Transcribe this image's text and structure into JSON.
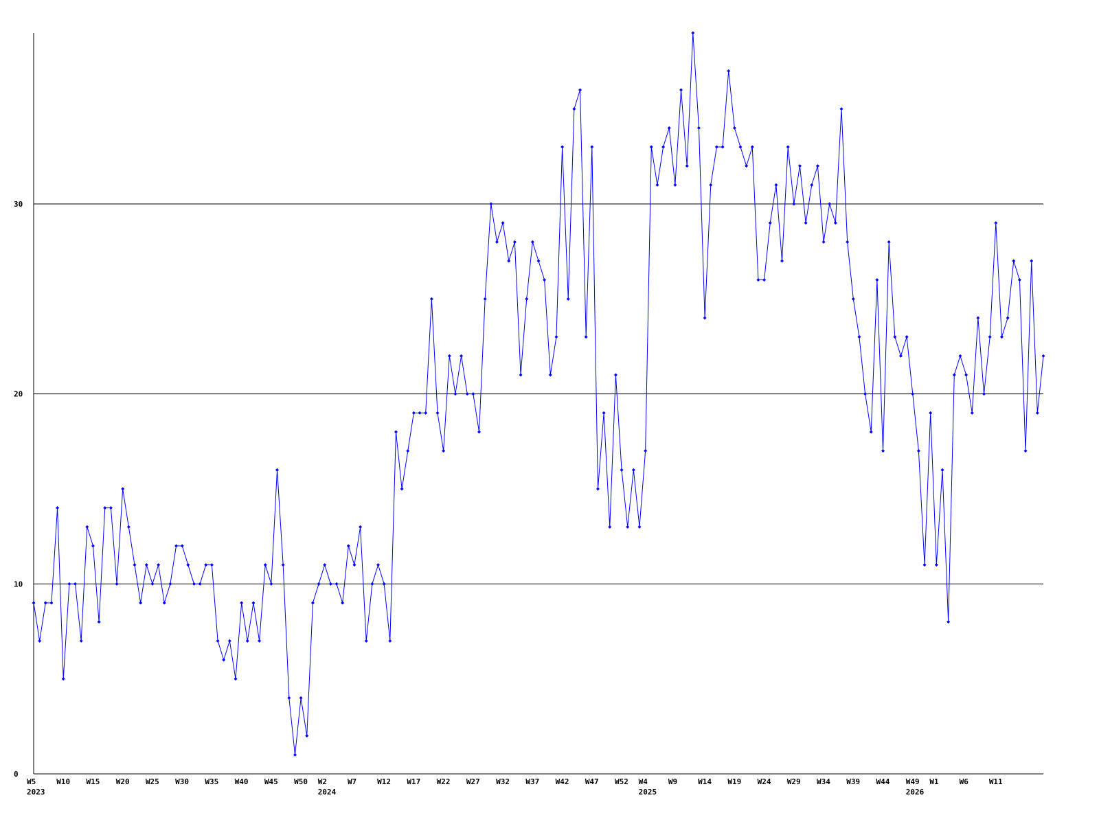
{
  "chart_data": {
    "type": "line",
    "categories": [
      "W5",
      null,
      null,
      null,
      null,
      "W10",
      null,
      null,
      null,
      null,
      "W15",
      null,
      null,
      null,
      null,
      "W20",
      null,
      null,
      null,
      null,
      "W25",
      null,
      null,
      null,
      null,
      "W30",
      null,
      null,
      null,
      null,
      "W35",
      null,
      null,
      null,
      null,
      "W40",
      null,
      null,
      null,
      null,
      "W45",
      null,
      null,
      null,
      null,
      "W50",
      null,
      null,
      null,
      "W2",
      null,
      null,
      null,
      null,
      "W7",
      null,
      null,
      null,
      null,
      "W12",
      null,
      null,
      null,
      null,
      "W17",
      null,
      null,
      null,
      null,
      "W22",
      null,
      null,
      null,
      null,
      "W27",
      null,
      null,
      null,
      null,
      "W32",
      null,
      null,
      null,
      null,
      "W37",
      null,
      null,
      null,
      null,
      "W42",
      null,
      null,
      null,
      null,
      "W47",
      null,
      null,
      null,
      null,
      "W52",
      null,
      null,
      null,
      "W4",
      null,
      null,
      null,
      null,
      "W9",
      null,
      null,
      null,
      null,
      "W14",
      null,
      null,
      null,
      null,
      "W19",
      null,
      null,
      null,
      null,
      "W24",
      null,
      null,
      null,
      null,
      "W29",
      null,
      null,
      null,
      null,
      "W34",
      null,
      null,
      null,
      null,
      "W39",
      null,
      null,
      null,
      null,
      "W44",
      null,
      null,
      null,
      null,
      "W49",
      null,
      null,
      null,
      "W1",
      null,
      null,
      null,
      null,
      "W6",
      null,
      null,
      null,
      null,
      "W11",
      null,
      null,
      null,
      null,
      null,
      null,
      null,
      null
    ],
    "x_group_labels": [
      "2023",
      null,
      null,
      null,
      null,
      null,
      null,
      null,
      null,
      null,
      null,
      null,
      null,
      null,
      null,
      null,
      null,
      null,
      null,
      null,
      null,
      null,
      null,
      null,
      null,
      null,
      null,
      null,
      null,
      null,
      null,
      null,
      null,
      null,
      null,
      null,
      null,
      null,
      null,
      null,
      null,
      null,
      null,
      null,
      null,
      null,
      null,
      null,
      null,
      "2024",
      null,
      null,
      null,
      null,
      null,
      null,
      null,
      null,
      null,
      null,
      null,
      null,
      null,
      null,
      null,
      null,
      null,
      null,
      null,
      null,
      null,
      null,
      null,
      null,
      null,
      null,
      null,
      null,
      null,
      null,
      null,
      null,
      null,
      null,
      null,
      null,
      null,
      null,
      null,
      null,
      null,
      null,
      null,
      null,
      null,
      null,
      null,
      null,
      null,
      null,
      null,
      null,
      null,
      "2025",
      null,
      null,
      null,
      null,
      null,
      null,
      null,
      null,
      null,
      null,
      null,
      null,
      null,
      null,
      null,
      null,
      null,
      null,
      null,
      null,
      null,
      null,
      null,
      null,
      null,
      null,
      null,
      null,
      null,
      null,
      null,
      null,
      null,
      null,
      null,
      null,
      null,
      null,
      null,
      null,
      null,
      null,
      null,
      null,
      "2026",
      null,
      null,
      null,
      null,
      null,
      null,
      null,
      null,
      null,
      null,
      null,
      null,
      null,
      null,
      null,
      null,
      null,
      null
    ],
    "series": [
      {
        "color": "#0000ff",
        "values": [
          9,
          7,
          9,
          9,
          14,
          5,
          10,
          10,
          7,
          13,
          12,
          8,
          14,
          14,
          10,
          15,
          13,
          11,
          9,
          11,
          10,
          11,
          9,
          10,
          12,
          12,
          11,
          10,
          10,
          11,
          11,
          7,
          6,
          7,
          5,
          9,
          7,
          9,
          7,
          11,
          10,
          16,
          11,
          4,
          1,
          4,
          2,
          9,
          10,
          11,
          10,
          10,
          9,
          12,
          11,
          13,
          7,
          10,
          11,
          10,
          7,
          18,
          15,
          17,
          19,
          19,
          19,
          25,
          19,
          17,
          22,
          20,
          22,
          20,
          20,
          18,
          25,
          30,
          28,
          29,
          27,
          28,
          21,
          25,
          28,
          27,
          26,
          21,
          23,
          33,
          25,
          35,
          36,
          23,
          33,
          15,
          19,
          13,
          21,
          16,
          13,
          16,
          13,
          17,
          33,
          31,
          33,
          34,
          31,
          36,
          32,
          39,
          34,
          24,
          31,
          33,
          33,
          37,
          34,
          33,
          32,
          33,
          26,
          26,
          29,
          31,
          27,
          33,
          30,
          32,
          29,
          31,
          32,
          28,
          30,
          29,
          35,
          28,
          25,
          23,
          20,
          18,
          26,
          17,
          28,
          23,
          22,
          23,
          20,
          17,
          11,
          19,
          11,
          16,
          8,
          21,
          22,
          21,
          19,
          24,
          20,
          23,
          29,
          23,
          24,
          27,
          26,
          17,
          27,
          19,
          22
        ]
      }
    ],
    "ylim": [
      0,
      39
    ],
    "yticks": [
      0,
      10,
      20,
      30
    ],
    "grid": true
  }
}
